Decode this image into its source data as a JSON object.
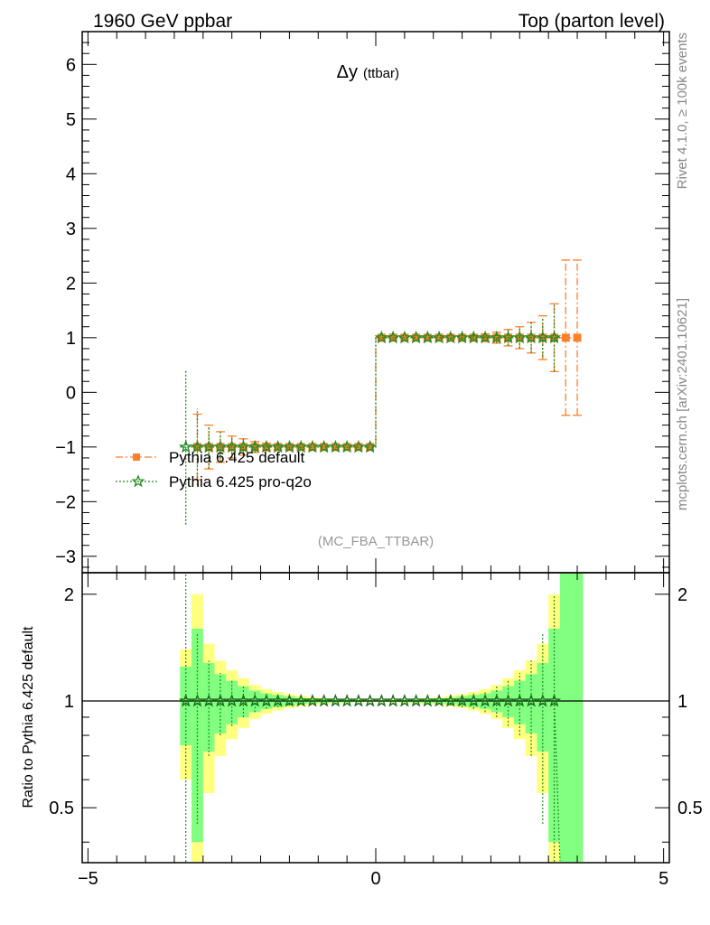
{
  "header": {
    "left": "1960 GeV ppbar",
    "right": "Top (parton level)"
  },
  "side_labels": {
    "rivet": "Rivet 4.1.0, ≥ 100k events",
    "mcplots": "mcplots.cern.ch [arXiv:2401.10621]"
  },
  "chart_data": {
    "type": "scatter",
    "title_main": "Δy",
    "title_sub": "(ttbar)",
    "analysis": "(MC_FBA_TTBAR)",
    "xlabel": "",
    "ylabel": "",
    "xlim": [
      -5.1,
      5.1
    ],
    "main_ylim": [
      -3.3,
      6.6
    ],
    "main_yticks": [
      "6",
      "5",
      "4",
      "3",
      "2",
      "1",
      "0",
      "−1",
      "−2",
      "−3"
    ],
    "main_ytick_values": [
      6,
      5,
      4,
      3,
      2,
      1,
      0,
      -1,
      -2,
      -3
    ],
    "ratio_ylabel": "Ratio to Pythia 6.425 default",
    "ratio_ylim": [
      0.35,
      2.3
    ],
    "ratio_yticks": [
      "2",
      "1",
      "0.5"
    ],
    "ratio_ytick_values": [
      2,
      1,
      0.5
    ],
    "xticks": [
      "−5",
      "0",
      "5"
    ],
    "xtick_values": [
      -5,
      0,
      5
    ],
    "bin_width": 0.2,
    "bin_centers": [
      -3.3,
      -3.1,
      -2.9,
      -2.7,
      -2.5,
      -2.3,
      -2.1,
      -1.9,
      -1.7,
      -1.5,
      -1.3,
      -1.1,
      -0.9,
      -0.7,
      -0.5,
      -0.3,
      -0.1,
      0.1,
      0.3,
      0.5,
      0.7,
      0.9,
      1.1,
      1.3,
      1.5,
      1.7,
      1.9,
      2.1,
      2.3,
      2.5,
      2.7,
      2.9,
      3.1,
      3.3,
      3.5
    ],
    "ratio_band_inner": [
      0.25,
      0.6,
      0.28,
      0.19,
      0.14,
      0.1,
      0.07,
      0.05,
      0.04,
      0.03,
      0.02,
      0.015,
      0.012,
      0.01,
      0.008,
      0.006,
      0.005,
      0.005,
      0.006,
      0.008,
      0.01,
      0.012,
      0.015,
      0.02,
      0.03,
      0.04,
      0.05,
      0.07,
      0.1,
      0.14,
      0.19,
      0.28,
      0.6,
      1.4,
      1.4
    ],
    "ratio_band_outer": [
      0.4,
      1.0,
      0.45,
      0.3,
      0.22,
      0.16,
      0.11,
      0.08,
      0.06,
      0.045,
      0.035,
      0.025,
      0.02,
      0.015,
      0.012,
      0.01,
      0.008,
      0.008,
      0.01,
      0.012,
      0.015,
      0.02,
      0.025,
      0.035,
      0.045,
      0.06,
      0.08,
      0.11,
      0.16,
      0.22,
      0.3,
      0.45,
      1.0,
      1.4,
      1.4
    ],
    "series": [
      {
        "name": "Pythia 6.425 default",
        "color": "#ff7f2a",
        "marker": "square",
        "x": [
          -3.1,
          -2.9,
          -2.7,
          -2.5,
          -2.3,
          -2.1,
          -1.9,
          -1.7,
          -1.5,
          -1.3,
          -1.1,
          -0.9,
          -0.7,
          -0.5,
          -0.3,
          -0.1,
          0.1,
          0.3,
          0.5,
          0.7,
          0.9,
          1.1,
          1.3,
          1.5,
          1.7,
          1.9,
          2.1,
          2.3,
          2.5,
          2.7,
          2.9,
          3.1,
          3.3,
          3.5
        ],
        "y": [
          -1,
          -1,
          -1,
          -1,
          -1,
          -1,
          -1,
          -1,
          -1,
          -1,
          -1,
          -1,
          -1,
          -1,
          -1,
          -1,
          1,
          1,
          1,
          1,
          1,
          1,
          1,
          1,
          1,
          1,
          1,
          1,
          1,
          1,
          1,
          1,
          1,
          1
        ],
        "yerr": [
          0.6,
          0.4,
          0.28,
          0.2,
          0.15,
          0.1,
          0.07,
          0.05,
          0.04,
          0.03,
          0.02,
          0.015,
          0.01,
          0.008,
          0.006,
          0.005,
          0.005,
          0.006,
          0.008,
          0.01,
          0.015,
          0.02,
          0.03,
          0.04,
          0.05,
          0.07,
          0.1,
          0.15,
          0.2,
          0.28,
          0.4,
          0.62,
          1.42,
          1.42
        ],
        "ratio": [
          1,
          1,
          1,
          1,
          1,
          1,
          1,
          1,
          1,
          1,
          1,
          1,
          1,
          1,
          1,
          1,
          1,
          1,
          1,
          1,
          1,
          1,
          1,
          1,
          1,
          1,
          1,
          1,
          1,
          1,
          1,
          1,
          1,
          1
        ]
      },
      {
        "name": "Pythia 6.425 pro-q2o",
        "color": "#228b22",
        "marker": "star",
        "x": [
          -3.3,
          -3.1,
          -2.9,
          -2.7,
          -2.5,
          -2.3,
          -2.1,
          -1.9,
          -1.7,
          -1.5,
          -1.3,
          -1.1,
          -0.9,
          -0.7,
          -0.5,
          -0.3,
          -0.1,
          0.1,
          0.3,
          0.5,
          0.7,
          0.9,
          1.1,
          1.3,
          1.5,
          1.7,
          1.9,
          2.1,
          2.3,
          2.5,
          2.7,
          2.9,
          3.1
        ],
        "y": [
          -1,
          -1,
          -1,
          -1,
          -1,
          -1,
          -1,
          -1,
          -1,
          -1,
          -1,
          -1,
          -1,
          -1,
          -1,
          -1,
          -1,
          1,
          1,
          1,
          1,
          1,
          1,
          1,
          1,
          1,
          1,
          1,
          1,
          1,
          1,
          1,
          1
        ],
        "yerr": [
          1.42,
          0.7,
          0.4,
          0.28,
          0.2,
          0.15,
          0.1,
          0.07,
          0.05,
          0.04,
          0.03,
          0.02,
          0.015,
          0.01,
          0.008,
          0.006,
          0.005,
          0.005,
          0.006,
          0.008,
          0.01,
          0.015,
          0.02,
          0.03,
          0.04,
          0.05,
          0.07,
          0.1,
          0.15,
          0.2,
          0.28,
          0.35,
          0.62
        ],
        "ratio": [
          1,
          1,
          1,
          1,
          1,
          1,
          1,
          1,
          1,
          1,
          1,
          1,
          1,
          1,
          1,
          1,
          1,
          1,
          1,
          1,
          1,
          1,
          1,
          1,
          1,
          1,
          1,
          1,
          1,
          1,
          1,
          1,
          1
        ],
        "ratio_err": [
          1.4,
          0.55,
          0.3,
          0.2,
          0.15,
          0.1,
          0.07,
          0.05,
          0.04,
          0.03,
          0.02,
          0.015,
          0.01,
          0.008,
          0.006,
          0.005,
          0.005,
          0.005,
          0.006,
          0.008,
          0.01,
          0.015,
          0.02,
          0.03,
          0.04,
          0.05,
          0.07,
          0.1,
          0.15,
          0.2,
          0.3,
          0.55,
          1.0
        ]
      }
    ]
  }
}
